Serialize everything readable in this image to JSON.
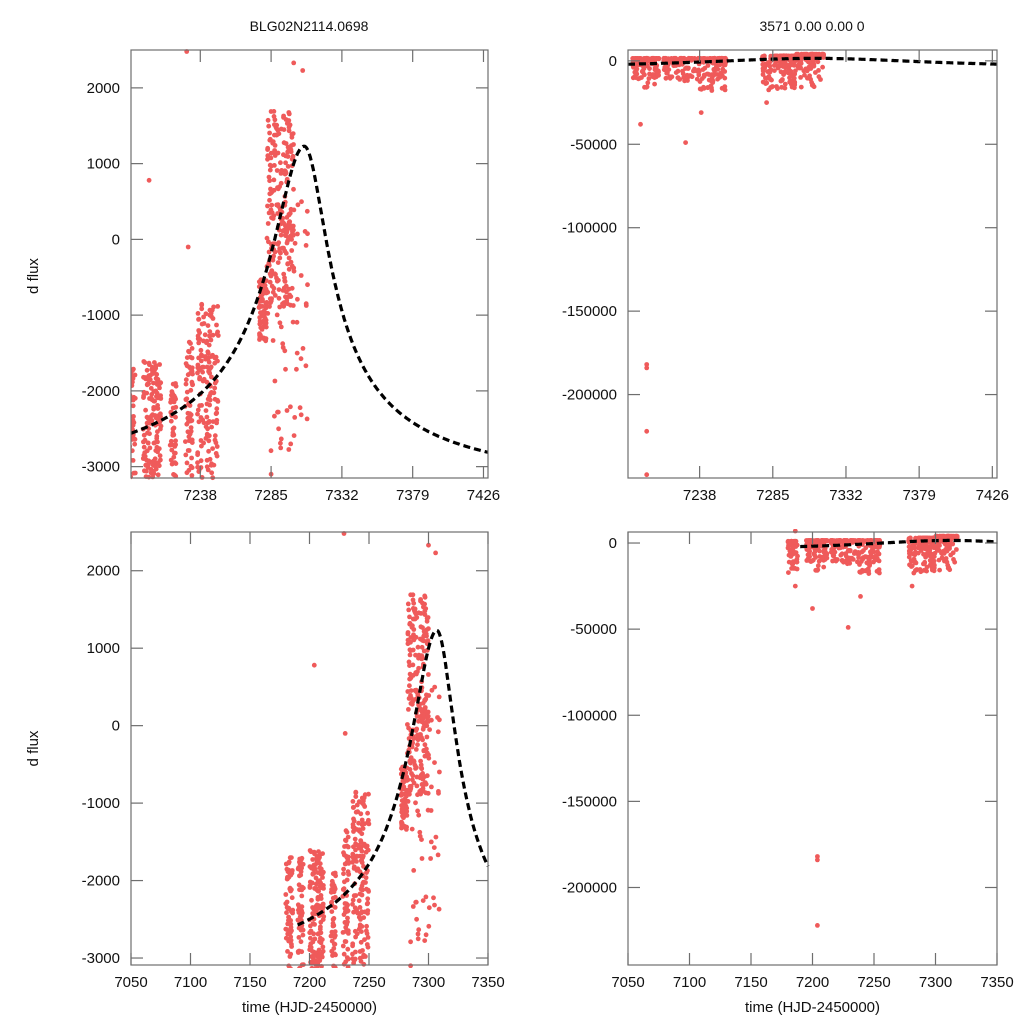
{
  "figure": {
    "title_left": "BLG02N2114.0698",
    "title_right": "3571  0.00  0.00  0"
  },
  "colors": {
    "points": "#ef5a5a",
    "model": "#000000",
    "frame": "#6e6e6e"
  },
  "chart_data": [
    {
      "id": "top-left",
      "type": "scatter",
      "title": "BLG02N2114.0698",
      "xlabel": "",
      "ylabel": "d flux",
      "xlim": [
        7192,
        7429
      ],
      "ylim": [
        -3150,
        2500
      ],
      "xticks": [
        7238,
        7285,
        7332,
        7379,
        7426
      ],
      "xtick_labels": [
        "7238",
        "7285",
        "7332",
        "7379",
        "7426"
      ],
      "yticks": [
        2000,
        1000,
        0,
        -1000,
        -2000,
        -3000
      ],
      "ytick_labels": [
        "2000",
        "1000",
        "0",
        "-1000",
        "-2000",
        "-3000"
      ],
      "grid": false,
      "series": [
        {
          "name": "observations",
          "kind": "points",
          "source": "lightcurve"
        },
        {
          "name": "model",
          "kind": "dashed-line",
          "source": "model"
        }
      ]
    },
    {
      "id": "top-right",
      "type": "scatter",
      "title": "3571  0.00  0.00  0",
      "xlabel": "",
      "ylabel": "",
      "xlim": [
        7192,
        7429
      ],
      "ylim": [
        -250000,
        6500
      ],
      "xticks": [
        7238,
        7285,
        7332,
        7379,
        7426
      ],
      "xtick_labels": [
        "7238",
        "7285",
        "7332",
        "7379",
        "7426"
      ],
      "yticks": [
        0,
        -50000,
        -100000,
        -150000,
        -200000
      ],
      "ytick_labels": [
        "0",
        "-50000",
        "-100000",
        "-150000",
        "-200000"
      ],
      "grid": false,
      "series": [
        {
          "name": "observations",
          "kind": "points",
          "source": "lightcurve"
        },
        {
          "name": "model",
          "kind": "dashed-line",
          "source": "model"
        }
      ]
    },
    {
      "id": "bottom-left",
      "type": "scatter",
      "title": "",
      "xlabel": "time (HJD-2450000)",
      "ylabel": "d flux",
      "xlim": [
        7050,
        7350
      ],
      "ylim": [
        -3090,
        2500
      ],
      "xticks": [
        7050,
        7100,
        7150,
        7200,
        7250,
        7300,
        7350
      ],
      "xtick_labels": [
        "7050",
        "7100",
        "7150",
        "7200",
        "7250",
        "7300",
        "7350"
      ],
      "yticks": [
        2000,
        1000,
        0,
        -1000,
        -2000,
        -3000
      ],
      "ytick_labels": [
        "2000",
        "1000",
        "0",
        "-1000",
        "-2000",
        "-3000"
      ],
      "grid": false,
      "series": [
        {
          "name": "observations",
          "kind": "points",
          "source": "lightcurve"
        },
        {
          "name": "model",
          "kind": "dashed-line",
          "source": "model"
        }
      ]
    },
    {
      "id": "bottom-right",
      "type": "scatter",
      "title": "",
      "xlabel": "time (HJD-2450000)",
      "ylabel": "",
      "xlim": [
        7050,
        7350
      ],
      "ylim": [
        -245000,
        6400
      ],
      "xticks": [
        7050,
        7100,
        7150,
        7200,
        7250,
        7300,
        7350
      ],
      "xtick_labels": [
        "7050",
        "7100",
        "7150",
        "7200",
        "7250",
        "7300",
        "7350"
      ],
      "yticks": [
        0,
        -50000,
        -100000,
        -150000,
        -200000
      ],
      "ytick_labels": [
        "0",
        "-50000",
        "-100000",
        "-150000",
        "-200000"
      ],
      "grid": false,
      "series": [
        {
          "name": "observations",
          "kind": "points",
          "source": "lightcurve"
        },
        {
          "name": "model",
          "kind": "dashed-line",
          "source": "model"
        }
      ]
    }
  ],
  "lightcurve": {
    "description": "approximate point clusters read from the figure (time, flux)",
    "zoomed_clusters": [
      {
        "t_range": [
          7180,
          7186
        ],
        "flux_range": [
          -3150,
          -1700
        ],
        "n": 60
      },
      {
        "t_range": [
          7190,
          7195
        ],
        "flux_range": [
          -3150,
          -1700
        ],
        "n": 55
      },
      {
        "t_range": [
          7200,
          7212
        ],
        "flux_range": [
          -3150,
          -1600
        ],
        "n": 140
      },
      {
        "t_range": [
          7218,
          7222
        ],
        "flux_range": [
          -3150,
          -1900
        ],
        "n": 45
      },
      {
        "t_range": [
          7228,
          7233
        ],
        "flux_range": [
          -3150,
          -1300
        ],
        "n": 60
      },
      {
        "t_range": [
          7236,
          7250
        ],
        "flux_range": [
          -3150,
          -800
        ],
        "n": 150
      },
      {
        "t_range": [
          7277,
          7282
        ],
        "flux_range": [
          -1400,
          -500
        ],
        "n": 70
      },
      {
        "t_range": [
          7282,
          7300
        ],
        "flux_range": [
          -900,
          1700
        ],
        "n": 220
      },
      {
        "t_range": [
          7282,
          7310
        ],
        "flux_range": [
          -2800,
          600
        ],
        "n": 60
      }
    ],
    "zoomed_outliers": [
      {
        "t": 7204,
        "flux": 780
      },
      {
        "t": 7230,
        "flux": -100
      },
      {
        "t": 7229,
        "flux": 2480
      },
      {
        "t": 7300,
        "flux": 2330
      },
      {
        "t": 7306,
        "flux": 2230
      },
      {
        "t": 7285,
        "flux": -3100
      },
      {
        "t": 7290,
        "flux": -2500
      },
      {
        "t": 7298,
        "flux": -2700
      }
    ],
    "wide_clusters": [
      {
        "t_range": [
          7180,
          7188
        ],
        "flux_range": [
          -18000,
          1000
        ],
        "n": 60
      },
      {
        "t_range": [
          7195,
          7212
        ],
        "flux_range": [
          -16000,
          1500
        ],
        "n": 120
      },
      {
        "t_range": [
          7215,
          7235
        ],
        "flux_range": [
          -12000,
          1500
        ],
        "n": 90
      },
      {
        "t_range": [
          7236,
          7255
        ],
        "flux_range": [
          -18000,
          1500
        ],
        "n": 120
      },
      {
        "t_range": [
          7278,
          7300
        ],
        "flux_range": [
          -18000,
          3000
        ],
        "n": 150
      },
      {
        "t_range": [
          7300,
          7318
        ],
        "flux_range": [
          -16000,
          4000
        ],
        "n": 90
      }
    ],
    "wide_outliers": [
      {
        "t": 7186,
        "flux": 7000
      },
      {
        "t": 7186,
        "flux": -25000
      },
      {
        "t": 7200,
        "flux": -38000
      },
      {
        "t": 7229,
        "flux": -49000
      },
      {
        "t": 7239,
        "flux": -31000
      },
      {
        "t": 7281,
        "flux": -25000
      },
      {
        "t": 7204,
        "flux": -182000
      },
      {
        "t": 7204,
        "flux": -184000
      },
      {
        "t": 7204,
        "flux": -222000
      },
      {
        "t": 7204,
        "flux": -248000
      }
    ]
  },
  "model": {
    "description": "single-lens microlensing fit, dashed black",
    "t0": 7307,
    "peak_flux": 1230,
    "baseline_flux": -3400,
    "rise_scale_days": 38,
    "fall_scale_days": 28
  }
}
